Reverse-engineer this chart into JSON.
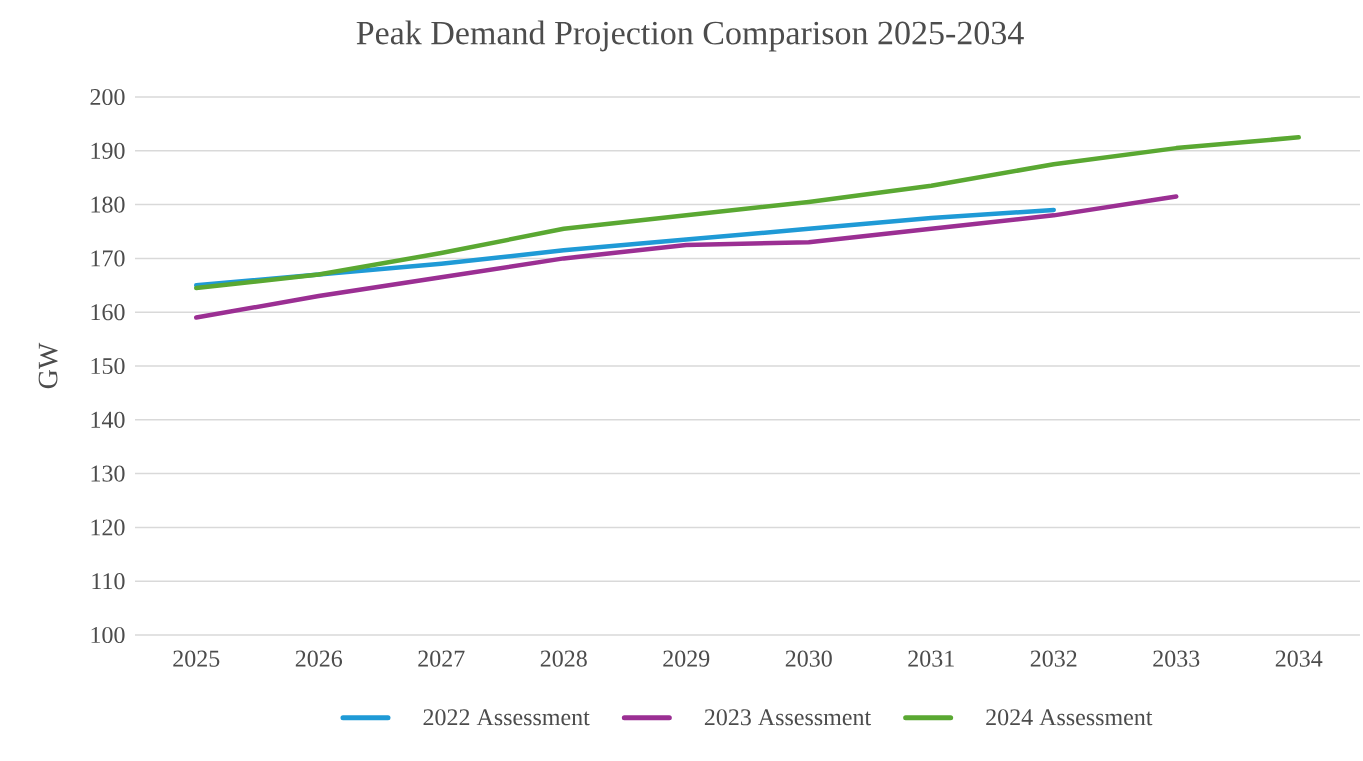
{
  "chart_data": {
    "type": "line",
    "title": "Peak Demand Projection Comparison 2025-2034",
    "ylabel": "GW",
    "categories": [
      "2025",
      "2026",
      "2027",
      "2028",
      "2029",
      "2030",
      "2031",
      "2032",
      "2033",
      "2034"
    ],
    "series": [
      {
        "name": "2022 Assessment",
        "color": "#1f9ad6",
        "values": [
          165,
          167,
          169,
          171.5,
          173.5,
          175.5,
          177.5,
          179,
          null,
          null
        ]
      },
      {
        "name": "2023 Assessment",
        "color": "#9b2f93",
        "values": [
          159,
          163,
          166.5,
          170,
          172.5,
          173,
          175.5,
          178,
          181.5,
          null
        ]
      },
      {
        "name": "2024 Assessment",
        "color": "#5aa832",
        "values": [
          164.5,
          167,
          171,
          175.5,
          178,
          180.5,
          183.5,
          187.5,
          190.5,
          192.5
        ]
      }
    ],
    "ylim": [
      100,
      200
    ],
    "yticks": [
      100,
      110,
      120,
      130,
      140,
      150,
      160,
      170,
      180,
      190,
      200
    ],
    "grid": "y",
    "legend": "bottom",
    "marker": "none"
  }
}
